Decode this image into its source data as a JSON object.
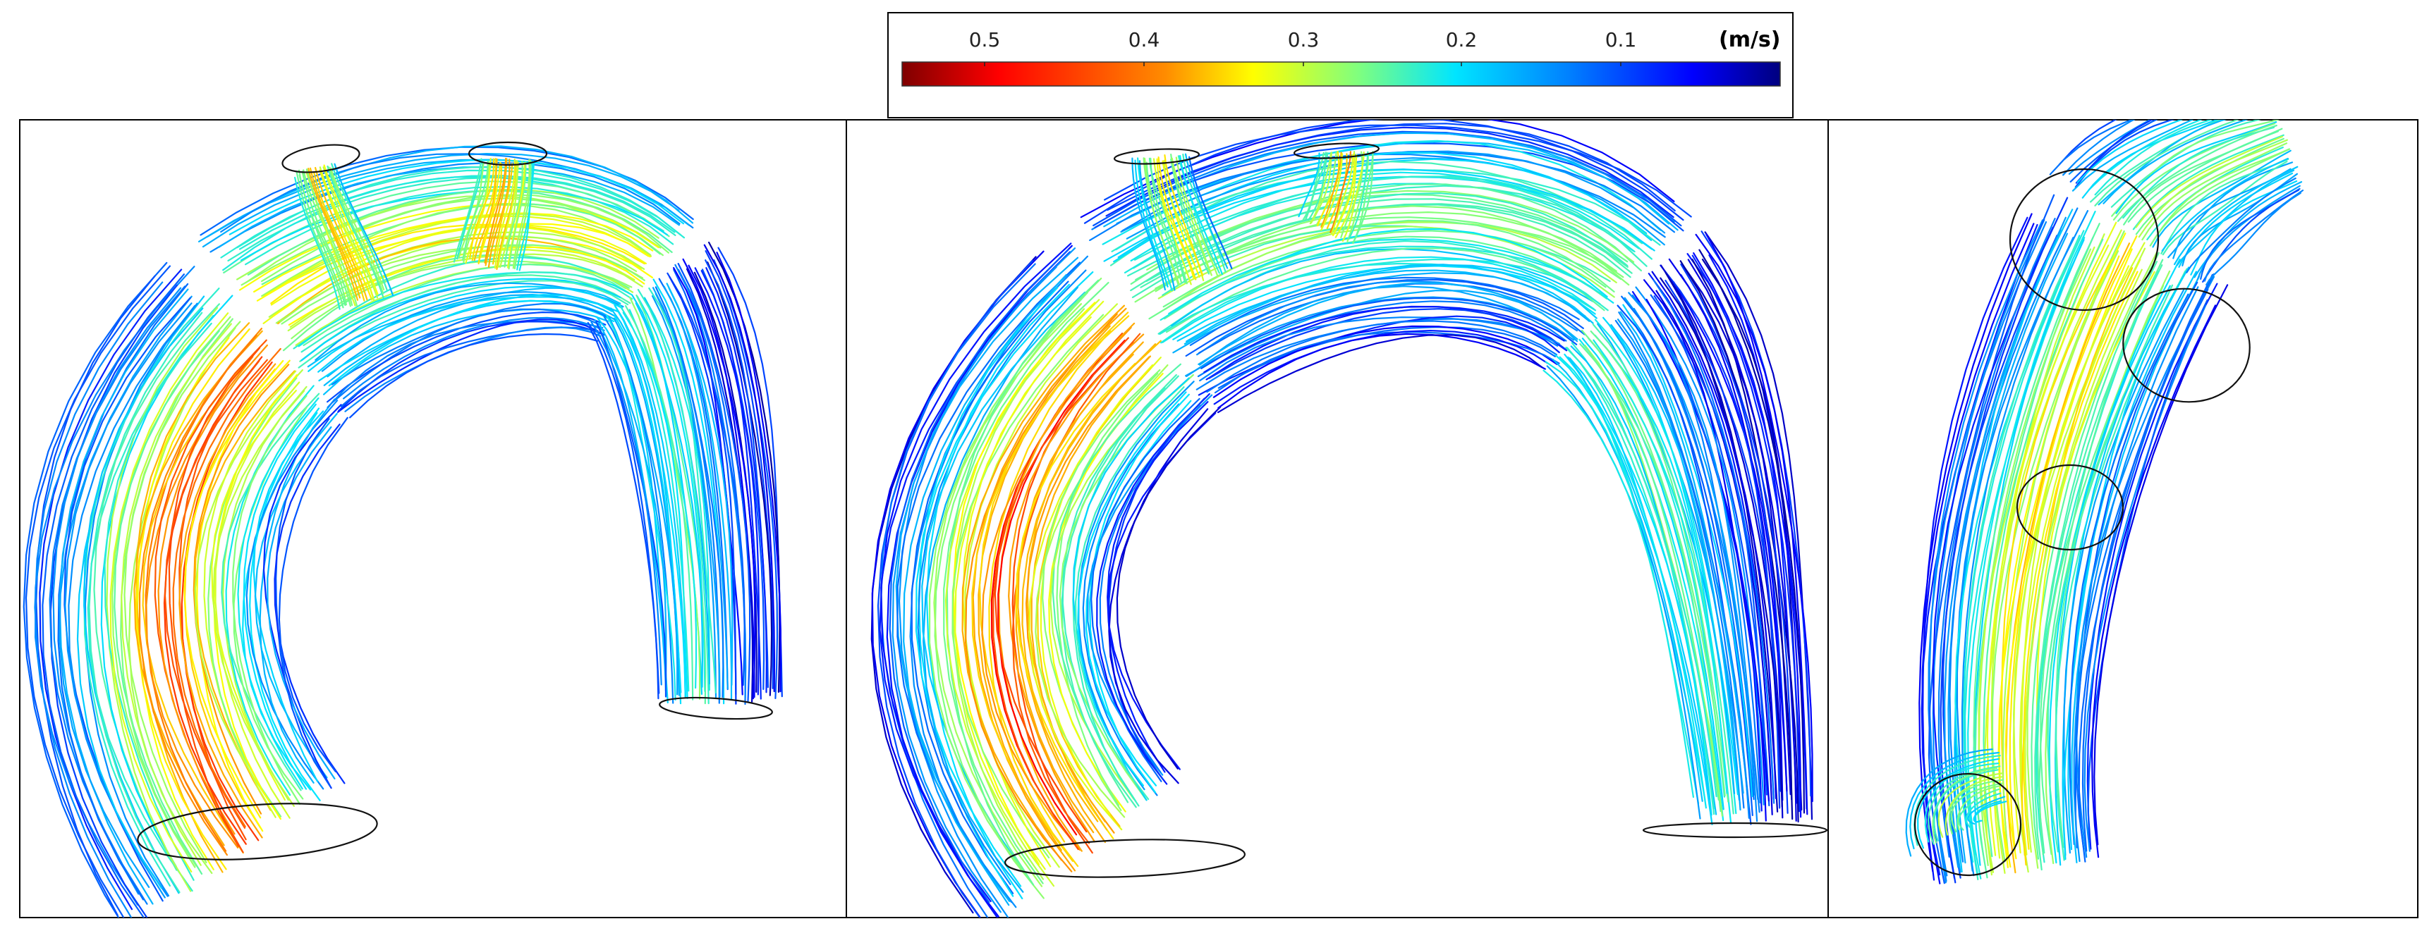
{
  "colorbar": {
    "ticks": [
      "0.5",
      "0.4",
      "0.3",
      "0.2",
      "0.1"
    ],
    "unit": "(m/s)",
    "range": [
      0.55,
      0.0
    ],
    "colormap": [
      "#7f0000",
      "#ff0000",
      "#ff8c00",
      "#ffff00",
      "#7fff7f",
      "#00e5ff",
      "#0080ff",
      "#0000ff",
      "#00007f"
    ]
  },
  "panels": [
    {
      "name": "panel-left-view"
    },
    {
      "name": "panel-middle-view"
    },
    {
      "name": "panel-right-view"
    }
  ]
}
